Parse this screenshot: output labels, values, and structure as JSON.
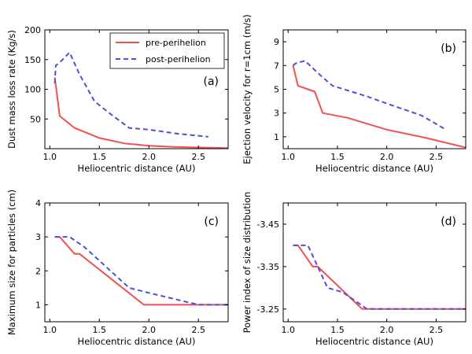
{
  "legend": {
    "pre_label": "pre-perihelion",
    "post_label": "post-perihelion"
  },
  "colors": {
    "pre": "#f05050",
    "post": "#4a50e0"
  },
  "chart_data": [
    {
      "type": "line",
      "panel_label": "(a)",
      "xlabel": "Heliocentric distance (AU)",
      "ylabel": "Dust mass loss rate (Kg/s)",
      "xlim": [
        0.95,
        2.8
      ],
      "ylim": [
        0,
        200
      ],
      "xticks": [
        1.0,
        1.5,
        2.0,
        2.5
      ],
      "xtick_labels": [
        "1.0",
        "1.5",
        "2.0",
        "2.5"
      ],
      "yticks": [
        50,
        100,
        150,
        200
      ],
      "ytick_labels": [
        "50",
        "100",
        "150",
        "200"
      ],
      "series": [
        {
          "name": "pre-perihelion",
          "x": [
            1.05,
            1.07,
            1.1,
            1.25,
            1.5,
            1.75,
            2.0,
            2.25,
            2.5,
            2.8
          ],
          "y": [
            120,
            95,
            55,
            35,
            18,
            9,
            5,
            3,
            2,
            1
          ]
        },
        {
          "name": "post-perihelion",
          "x": [
            1.05,
            1.06,
            1.1,
            1.2,
            1.3,
            1.45,
            1.6,
            1.8,
            2.0,
            2.3,
            2.6
          ],
          "y": [
            110,
            140,
            145,
            162,
            125,
            80,
            60,
            35,
            32,
            25,
            20
          ]
        }
      ]
    },
    {
      "type": "line",
      "panel_label": "(b)",
      "xlabel": "Heliocentric distance (AU)",
      "ylabel": "Ejection velocity for r=1cm (m/s)",
      "xlim": [
        0.95,
        2.8
      ],
      "ylim": [
        0,
        10
      ],
      "xticks": [
        1.0,
        1.5,
        2.0,
        2.5
      ],
      "xtick_labels": [
        "1.0",
        "1.5",
        "2.0",
        "2.5"
      ],
      "yticks": [
        1,
        3,
        5,
        7,
        9
      ],
      "ytick_labels": [
        "1",
        "3",
        "5",
        "7",
        "9"
      ],
      "series": [
        {
          "name": "pre-perihelion",
          "x": [
            1.05,
            1.1,
            1.27,
            1.35,
            1.6,
            2.0,
            2.4,
            2.8
          ],
          "y": [
            7.0,
            5.3,
            4.8,
            3.0,
            2.6,
            1.6,
            0.9,
            0.1
          ]
        },
        {
          "name": "post-perihelion",
          "x": [
            1.05,
            1.08,
            1.17,
            1.35,
            1.45,
            1.8,
            2.0,
            2.35,
            2.6
          ],
          "y": [
            7.0,
            7.2,
            7.4,
            6.0,
            5.3,
            4.4,
            3.8,
            2.8,
            1.6
          ]
        }
      ]
    },
    {
      "type": "line",
      "panel_label": "(c)",
      "xlabel": "Heliocentric distance (AU)",
      "ylabel": "Maximum size for particles (cm)",
      "xlim": [
        0.95,
        2.8
      ],
      "ylim": [
        0.5,
        4
      ],
      "xticks": [
        1.0,
        1.5,
        2.0,
        2.5
      ],
      "xtick_labels": [
        "1.0",
        "1.5",
        "2.0",
        "2.5"
      ],
      "yticks": [
        1,
        2,
        3,
        4
      ],
      "ytick_labels": [
        "1",
        "2",
        "3",
        "4"
      ],
      "series": [
        {
          "name": "pre-perihelion",
          "x": [
            1.05,
            1.1,
            1.25,
            1.3,
            1.95,
            2.8
          ],
          "y": [
            3.0,
            3.0,
            2.5,
            2.5,
            1.0,
            1.0
          ]
        },
        {
          "name": "post-perihelion",
          "x": [
            1.05,
            1.2,
            1.35,
            1.5,
            1.8,
            2.0,
            2.5,
            2.8
          ],
          "y": [
            3.0,
            3.0,
            2.7,
            2.3,
            1.5,
            1.35,
            1.0,
            1.0
          ]
        }
      ]
    },
    {
      "type": "line",
      "panel_label": "(d)",
      "xlabel": "Heliocentric distance (AU)",
      "ylabel": "Power index of size distribution",
      "xlim": [
        0.95,
        2.8
      ],
      "ylim": [
        -3.22,
        -3.5
      ],
      "xticks": [
        1.0,
        1.5,
        2.0,
        2.5
      ],
      "xtick_labels": [
        "1.0",
        "1.5",
        "2.0",
        "2.5"
      ],
      "yticks": [
        -3.45,
        -3.35,
        -3.25
      ],
      "ytick_labels": [
        "-3.45",
        "-3.35",
        "-3.25"
      ],
      "series": [
        {
          "name": "pre-perihelion",
          "x": [
            1.05,
            1.1,
            1.25,
            1.3,
            1.75,
            2.8
          ],
          "y": [
            -3.4,
            -3.4,
            -3.35,
            -3.35,
            -3.25,
            -3.25
          ]
        },
        {
          "name": "post-perihelion",
          "x": [
            1.05,
            1.2,
            1.4,
            1.55,
            1.8,
            2.8
          ],
          "y": [
            -3.4,
            -3.4,
            -3.3,
            -3.29,
            -3.25,
            -3.25
          ]
        }
      ]
    }
  ]
}
